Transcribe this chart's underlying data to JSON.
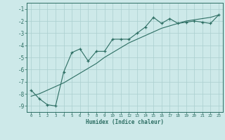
{
  "title": "",
  "xlabel": "Humidex (Indice chaleur)",
  "ylabel": "",
  "x_data": [
    0,
    1,
    2,
    3,
    4,
    5,
    6,
    7,
    8,
    9,
    10,
    11,
    12,
    13,
    14,
    15,
    16,
    17,
    18,
    19,
    20,
    21,
    22,
    23
  ],
  "y_line1": [
    -7.7,
    -8.4,
    -8.9,
    -9.0,
    -6.2,
    -4.6,
    -4.3,
    -5.3,
    -4.5,
    -4.5,
    -3.5,
    -3.5,
    -3.5,
    -3.0,
    -2.5,
    -1.7,
    -2.2,
    -1.8,
    -2.2,
    -2.1,
    -2.0,
    -2.1,
    -2.2,
    -1.5
  ],
  "y_line2": [
    -8.2,
    -8.0,
    -7.7,
    -7.4,
    -7.1,
    -6.7,
    -6.3,
    -5.9,
    -5.5,
    -5.0,
    -4.6,
    -4.2,
    -3.8,
    -3.5,
    -3.2,
    -2.9,
    -2.6,
    -2.4,
    -2.2,
    -2.0,
    -1.9,
    -1.8,
    -1.7,
    -1.5
  ],
  "line_color": "#2d6e63",
  "bg_color": "#cde9e9",
  "grid_color": "#aacfcf",
  "ylim": [
    -9.5,
    -0.5
  ],
  "xlim": [
    -0.5,
    23.5
  ],
  "yticks": [
    -9,
    -8,
    -7,
    -6,
    -5,
    -4,
    -3,
    -2,
    -1
  ],
  "xticks": [
    0,
    1,
    2,
    3,
    4,
    5,
    6,
    7,
    8,
    9,
    10,
    11,
    12,
    13,
    14,
    15,
    16,
    17,
    18,
    19,
    20,
    21,
    22,
    23
  ],
  "marker": "+"
}
